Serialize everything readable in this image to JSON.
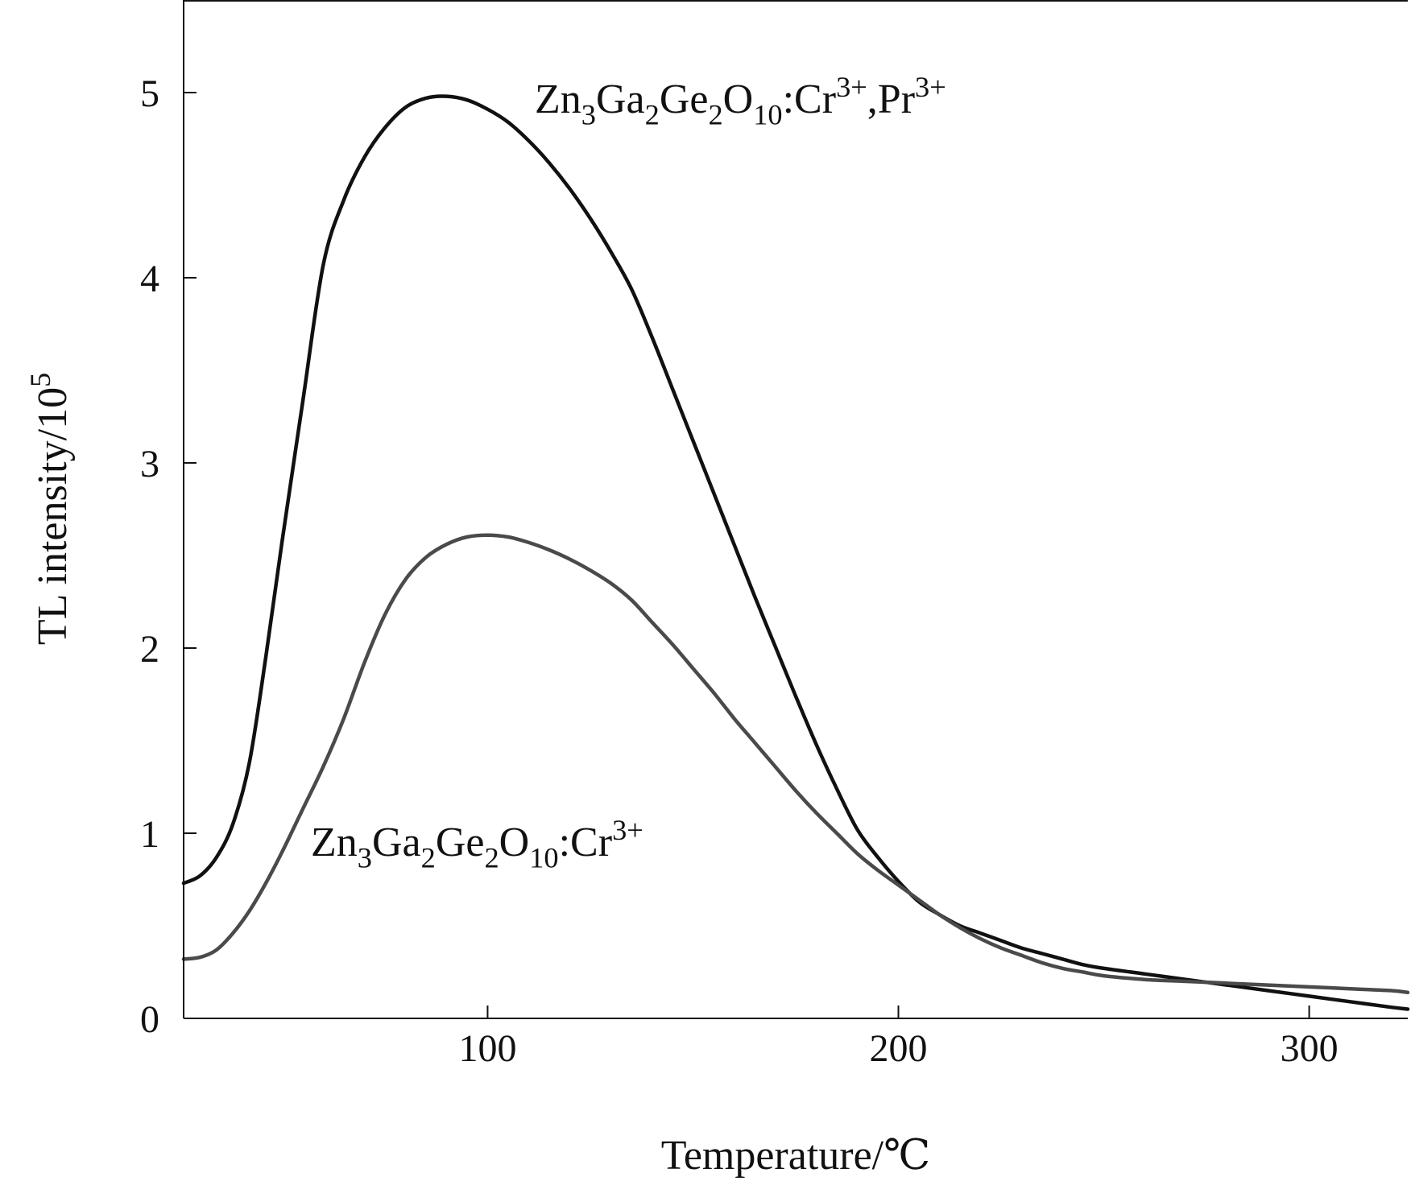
{
  "chart_data": {
    "type": "line",
    "title": "",
    "xlabel": "Temperature/℃",
    "ylabel": {
      "base": "TL intensity/10",
      "sup": "5"
    },
    "xlim": [
      26,
      324
    ],
    "ylim": [
      0,
      5.5
    ],
    "xticks": [
      100,
      200,
      300
    ],
    "yticks": [
      0,
      1,
      2,
      3,
      4,
      5
    ],
    "grid": false,
    "series": [
      {
        "name": "Zn3Ga2Ge2O10:Cr3+,Pr3+",
        "label_parts": [
          {
            "t": "Zn",
            "s": "n"
          },
          {
            "t": "3",
            "s": "sub"
          },
          {
            "t": "Ga",
            "s": "n"
          },
          {
            "t": "2",
            "s": "sub"
          },
          {
            "t": "Ge",
            "s": "n"
          },
          {
            "t": "2",
            "s": "sub"
          },
          {
            "t": "O",
            "s": "n"
          },
          {
            "t": "10",
            "s": "sub"
          },
          {
            "t": ":Cr",
            "s": "n"
          },
          {
            "t": "3+",
            "s": "sup"
          },
          {
            "t": ",Pr",
            "s": "n"
          },
          {
            "t": "3+",
            "s": "sup"
          }
        ],
        "color": "#111111",
        "x": [
          26,
          30,
          34,
          38,
          42,
          46,
          50,
          55,
          60,
          65,
          70,
          75,
          80,
          85,
          90,
          95,
          100,
          105,
          110,
          115,
          120,
          125,
          130,
          135,
          140,
          145,
          150,
          155,
          160,
          165,
          170,
          175,
          180,
          185,
          190,
          195,
          200,
          205,
          210,
          215,
          220,
          225,
          230,
          235,
          240,
          245,
          250,
          260,
          270,
          280,
          290,
          300,
          310,
          320,
          324
        ],
        "values": [
          0.73,
          0.77,
          0.87,
          1.05,
          1.38,
          1.95,
          2.58,
          3.33,
          4.07,
          4.42,
          4.65,
          4.81,
          4.92,
          4.97,
          4.98,
          4.96,
          4.91,
          4.84,
          4.74,
          4.62,
          4.48,
          4.32,
          4.14,
          3.94,
          3.68,
          3.4,
          3.12,
          2.84,
          2.56,
          2.28,
          2.01,
          1.74,
          1.48,
          1.24,
          1.02,
          0.87,
          0.74,
          0.63,
          0.56,
          0.5,
          0.46,
          0.42,
          0.38,
          0.35,
          0.32,
          0.29,
          0.27,
          0.24,
          0.21,
          0.18,
          0.15,
          0.12,
          0.09,
          0.06,
          0.05
        ]
      },
      {
        "name": "Zn3Ga2Ge2O10:Cr3+",
        "label_parts": [
          {
            "t": "Zn",
            "s": "n"
          },
          {
            "t": "3",
            "s": "sub"
          },
          {
            "t": "Ga",
            "s": "n"
          },
          {
            "t": "2",
            "s": "sub"
          },
          {
            "t": "Ge",
            "s": "n"
          },
          {
            "t": "2",
            "s": "sub"
          },
          {
            "t": "O",
            "s": "n"
          },
          {
            "t": "10",
            "s": "sub"
          },
          {
            "t": ":Cr",
            "s": "n"
          },
          {
            "t": "3+",
            "s": "sup"
          }
        ],
        "color": "#4a4a4a",
        "x": [
          26,
          30,
          34,
          38,
          42,
          46,
          50,
          55,
          60,
          65,
          70,
          75,
          80,
          85,
          90,
          95,
          100,
          105,
          110,
          115,
          120,
          125,
          130,
          135,
          140,
          145,
          150,
          155,
          160,
          165,
          170,
          175,
          180,
          185,
          190,
          195,
          200,
          205,
          210,
          215,
          220,
          225,
          230,
          235,
          240,
          245,
          250,
          260,
          270,
          280,
          290,
          300,
          310,
          320,
          324
        ],
        "values": [
          0.32,
          0.33,
          0.37,
          0.46,
          0.58,
          0.73,
          0.9,
          1.13,
          1.36,
          1.62,
          1.92,
          2.18,
          2.37,
          2.49,
          2.56,
          2.6,
          2.61,
          2.6,
          2.57,
          2.53,
          2.48,
          2.42,
          2.35,
          2.26,
          2.14,
          2.02,
          1.89,
          1.76,
          1.62,
          1.49,
          1.36,
          1.23,
          1.11,
          1.0,
          0.89,
          0.8,
          0.72,
          0.64,
          0.56,
          0.49,
          0.43,
          0.38,
          0.34,
          0.3,
          0.27,
          0.25,
          0.23,
          0.21,
          0.2,
          0.19,
          0.18,
          0.17,
          0.16,
          0.15,
          0.14
        ]
      }
    ]
  }
}
